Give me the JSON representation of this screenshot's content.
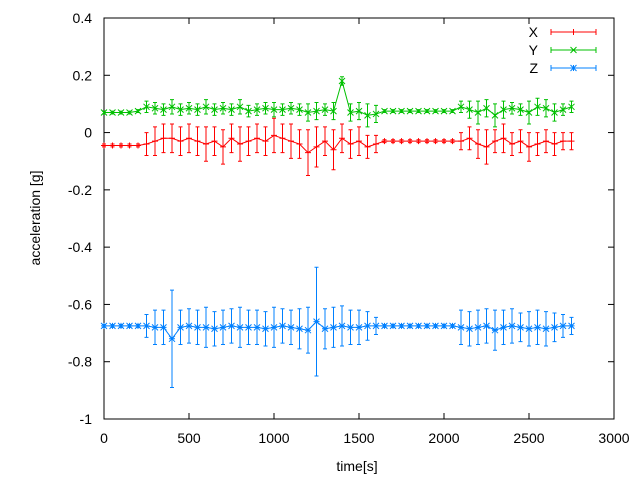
{
  "chart_data": {
    "type": "line",
    "xlabel": "time[s]",
    "ylabel": "acceleration [g]",
    "xlim": [
      0,
      3000
    ],
    "ylim": [
      -1,
      0.4
    ],
    "xticks": [
      0,
      500,
      1000,
      1500,
      2000,
      2500,
      3000
    ],
    "yticks": [
      0.4,
      0.2,
      0,
      -0.2,
      -0.4,
      -0.6,
      -0.8,
      -1
    ],
    "ytick_labels": [
      "0.4",
      "0.2",
      "0",
      "-0.2",
      "-0.4",
      "-0.6",
      "-0.8",
      "-1"
    ],
    "grid": false,
    "legend_placement": "top-right",
    "x": [
      0,
      50,
      100,
      150,
      200,
      250,
      300,
      350,
      400,
      450,
      500,
      550,
      600,
      650,
      700,
      750,
      800,
      850,
      900,
      950,
      1000,
      1050,
      1100,
      1150,
      1200,
      1250,
      1300,
      1350,
      1400,
      1450,
      1500,
      1550,
      1600,
      1650,
      1700,
      1750,
      1800,
      1850,
      1900,
      1950,
      2000,
      2050,
      2100,
      2150,
      2200,
      2250,
      2300,
      2350,
      2400,
      2450,
      2500,
      2550,
      2600,
      2650,
      2700,
      2750
    ],
    "series": [
      {
        "name": "X",
        "color": "#ff0000",
        "marker": "plus",
        "values": [
          -0.045,
          -0.045,
          -0.045,
          -0.045,
          -0.045,
          -0.04,
          -0.03,
          -0.02,
          -0.02,
          -0.03,
          -0.02,
          -0.03,
          -0.04,
          -0.03,
          -0.05,
          -0.02,
          -0.04,
          -0.03,
          -0.02,
          -0.03,
          -0.01,
          -0.02,
          -0.03,
          -0.04,
          -0.07,
          -0.05,
          -0.03,
          -0.06,
          -0.02,
          -0.04,
          -0.03,
          -0.05,
          -0.04,
          -0.03,
          -0.03,
          -0.03,
          -0.03,
          -0.03,
          -0.03,
          -0.03,
          -0.03,
          -0.03,
          -0.03,
          -0.02,
          -0.04,
          -0.05,
          -0.03,
          -0.02,
          -0.04,
          -0.03,
          -0.05,
          -0.04,
          -0.03,
          -0.04,
          -0.03,
          -0.03
        ],
        "errors": [
          0.005,
          0.005,
          0.005,
          0.005,
          0.005,
          0.04,
          0.05,
          0.05,
          0.05,
          0.05,
          0.05,
          0.05,
          0.06,
          0.05,
          0.06,
          0.05,
          0.06,
          0.05,
          0.05,
          0.05,
          0.06,
          0.05,
          0.06,
          0.05,
          0.08,
          0.07,
          0.05,
          0.07,
          0.05,
          0.05,
          0.05,
          0.04,
          0.03,
          0.005,
          0.005,
          0.005,
          0.005,
          0.005,
          0.005,
          0.005,
          0.005,
          0.005,
          0.03,
          0.04,
          0.05,
          0.06,
          0.04,
          0.05,
          0.04,
          0.04,
          0.05,
          0.04,
          0.04,
          0.04,
          0.03,
          0.03
        ]
      },
      {
        "name": "Y",
        "color": "#00c000",
        "marker": "cross",
        "values": [
          0.07,
          0.07,
          0.07,
          0.07,
          0.075,
          0.09,
          0.085,
          0.08,
          0.09,
          0.08,
          0.085,
          0.08,
          0.09,
          0.08,
          0.085,
          0.08,
          0.09,
          0.075,
          0.08,
          0.085,
          0.08,
          0.08,
          0.085,
          0.08,
          0.07,
          0.075,
          0.08,
          0.075,
          0.18,
          0.07,
          0.075,
          0.06,
          0.065,
          0.075,
          0.075,
          0.075,
          0.075,
          0.075,
          0.075,
          0.075,
          0.075,
          0.075,
          0.09,
          0.08,
          0.07,
          0.085,
          0.06,
          0.08,
          0.085,
          0.08,
          0.07,
          0.09,
          0.085,
          0.07,
          0.08,
          0.09
        ],
        "errors": [
          0.005,
          0.005,
          0.005,
          0.005,
          0.005,
          0.02,
          0.02,
          0.02,
          0.025,
          0.02,
          0.02,
          0.02,
          0.025,
          0.02,
          0.02,
          0.02,
          0.025,
          0.02,
          0.02,
          0.02,
          0.025,
          0.02,
          0.02,
          0.02,
          0.03,
          0.03,
          0.02,
          0.03,
          0.015,
          0.03,
          0.03,
          0.04,
          0.03,
          0.005,
          0.005,
          0.005,
          0.005,
          0.005,
          0.005,
          0.005,
          0.005,
          0.005,
          0.02,
          0.03,
          0.04,
          0.03,
          0.04,
          0.03,
          0.02,
          0.02,
          0.04,
          0.03,
          0.03,
          0.03,
          0.02,
          0.02
        ]
      },
      {
        "name": "Z",
        "color": "#0080ff",
        "marker": "star",
        "values": [
          -0.675,
          -0.675,
          -0.675,
          -0.675,
          -0.675,
          -0.675,
          -0.68,
          -0.68,
          -0.72,
          -0.68,
          -0.675,
          -0.68,
          -0.68,
          -0.685,
          -0.68,
          -0.675,
          -0.68,
          -0.68,
          -0.68,
          -0.685,
          -0.68,
          -0.675,
          -0.68,
          -0.685,
          -0.69,
          -0.66,
          -0.685,
          -0.68,
          -0.675,
          -0.68,
          -0.68,
          -0.675,
          -0.675,
          -0.675,
          -0.675,
          -0.675,
          -0.675,
          -0.675,
          -0.675,
          -0.675,
          -0.675,
          -0.675,
          -0.68,
          -0.685,
          -0.68,
          -0.675,
          -0.69,
          -0.68,
          -0.675,
          -0.68,
          -0.685,
          -0.68,
          -0.685,
          -0.68,
          -0.675,
          -0.675
        ],
        "errors": [
          0.005,
          0.005,
          0.005,
          0.005,
          0.005,
          0.04,
          0.06,
          0.06,
          0.17,
          0.06,
          0.06,
          0.06,
          0.07,
          0.06,
          0.06,
          0.06,
          0.07,
          0.06,
          0.06,
          0.06,
          0.07,
          0.06,
          0.06,
          0.07,
          0.08,
          0.19,
          0.07,
          0.07,
          0.07,
          0.06,
          0.06,
          0.05,
          0.03,
          0.005,
          0.005,
          0.005,
          0.005,
          0.005,
          0.005,
          0.005,
          0.005,
          0.005,
          0.06,
          0.06,
          0.06,
          0.06,
          0.07,
          0.06,
          0.06,
          0.05,
          0.06,
          0.06,
          0.06,
          0.05,
          0.04,
          0.03
        ]
      }
    ]
  }
}
